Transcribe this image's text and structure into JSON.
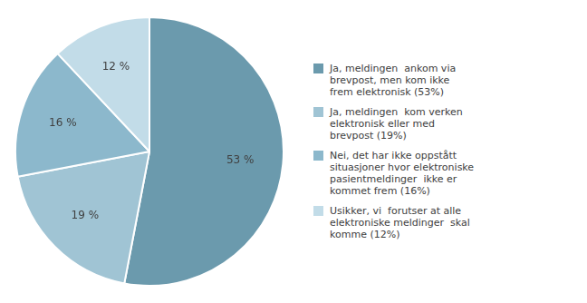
{
  "chart_data": {
    "type": "pie",
    "categories": [
      "Ja, meldingen  ankom via\nbrevpost, men kom ikke\nfrem elektronisk (53%)",
      "Ja, meldingen  kom verken\nelektronisk eller med\nbrevpost (19%)",
      "Nei, det har ikke oppstått\nsituasjoner hvor elektroniske\npasientmeldinger  ikke er\nkommet frem (16%)",
      "Usikker, vi  forutser at alle\nelektroniske meldinger  skal\nkomme (12%)"
    ],
    "values": [
      53,
      19,
      16,
      12
    ],
    "value_labels": [
      "53 %",
      "19 %",
      "16 %",
      "12 %"
    ],
    "colors": [
      "#6b9aad",
      "#a0c4d4",
      "#8cb8cc",
      "#c2dce8"
    ],
    "data_labels": true,
    "legend": "right"
  }
}
